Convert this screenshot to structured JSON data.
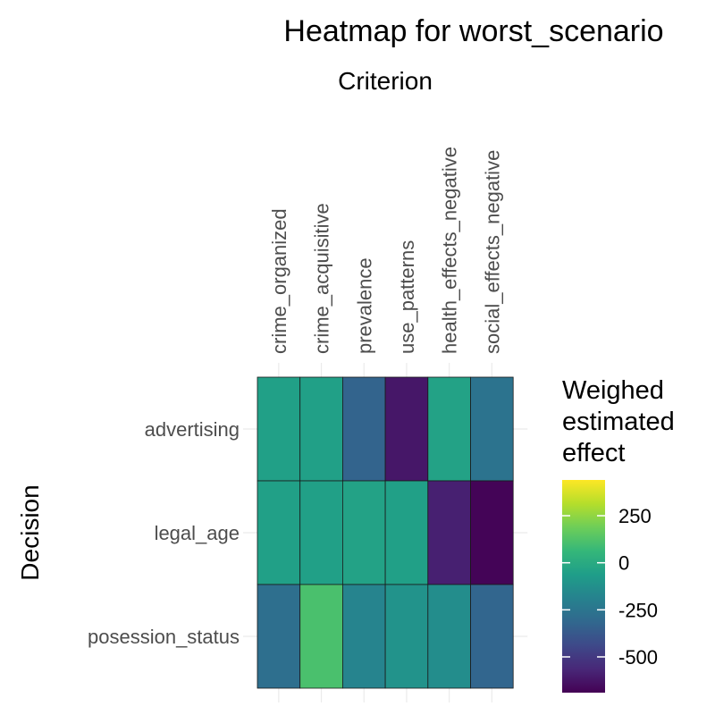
{
  "chart_data": {
    "type": "heatmap",
    "title": "Heatmap for worst_scenario",
    "xlabel": "Criterion",
    "ylabel": "Decision",
    "x_position": "top",
    "grid": true,
    "x_categories": [
      "crime_organized",
      "crime_acquisitive",
      "prevalence",
      "use_patterns",
      "health_effects_negative",
      "social_effects_negative"
    ],
    "y_categories": [
      "advertising",
      "legal_age",
      "posession_status"
    ],
    "values": [
      [
        -50,
        -50,
        -330,
        -620,
        -40,
        -260
      ],
      [
        -50,
        -50,
        -40,
        -50,
        -590,
        -680
      ],
      [
        -280,
        110,
        -180,
        -110,
        -140,
        -320
      ]
    ],
    "legend": {
      "title_lines": [
        "Weighed",
        "estimated",
        "effect"
      ],
      "ticks": [
        250,
        0,
        -250,
        -500
      ],
      "range": [
        -690,
        440
      ],
      "colormap": "viridis",
      "placement": "right"
    }
  }
}
